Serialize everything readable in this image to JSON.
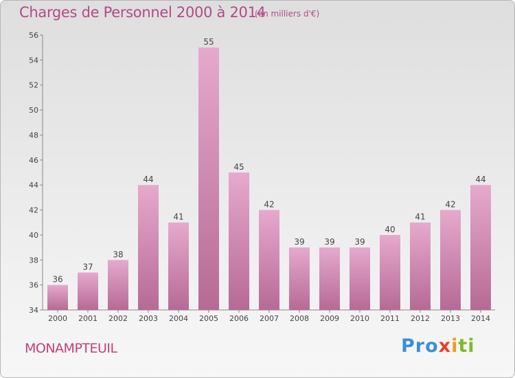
{
  "header": {
    "title": "Charges de Personnel 2000 à 2014",
    "subtitle": "(en milliers d'€)"
  },
  "footer": {
    "city": "MONAMPTEUIL",
    "logo": "Proxiti"
  },
  "colors": {
    "accent": "#b34a86",
    "bar_top": "#e6a9cd",
    "bar_bottom": "#b66a96"
  },
  "chart_data": {
    "type": "bar",
    "categories": [
      "2000",
      "2001",
      "2002",
      "2003",
      "2004",
      "2005",
      "2006",
      "2007",
      "2008",
      "2009",
      "2010",
      "2011",
      "2012",
      "2013",
      "2014"
    ],
    "values": [
      36,
      37,
      38,
      44,
      41,
      55,
      45,
      42,
      39,
      39,
      39,
      40,
      41,
      42,
      44
    ],
    "title": "Charges de Personnel 2000 à 2014",
    "subtitle": "(en milliers d'€)",
    "ylim": [
      34,
      56
    ],
    "yticks": [
      34,
      36,
      38,
      40,
      42,
      44,
      46,
      48,
      50,
      52,
      54,
      56
    ],
    "grid": false,
    "data_labels": true
  }
}
